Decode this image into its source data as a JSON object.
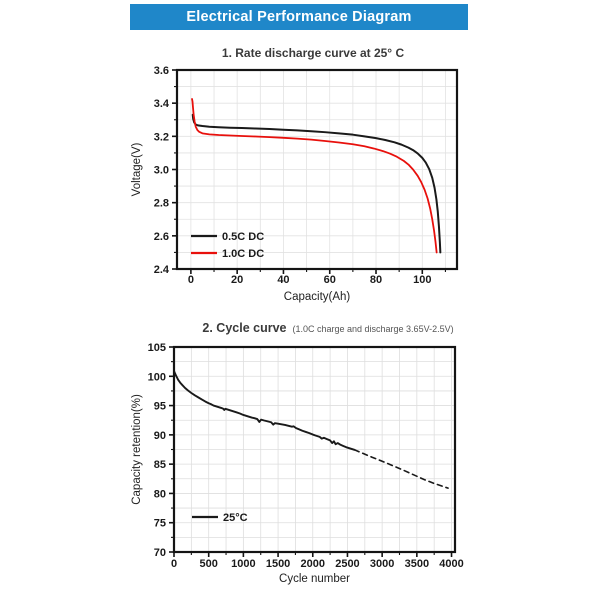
{
  "header": {
    "title": "Electrical Performance Diagram",
    "bg_color": "#1f87c9",
    "text_color": "#ffffff"
  },
  "colors": {
    "frame": "#141414",
    "tick_label": "#1a1a1a",
    "axis_label": "#222222",
    "title": "#3a3a3a",
    "subtitle": "#555555",
    "curve_black": "#1a1a1a",
    "curve_red": "#e8100c"
  },
  "chart_data": [
    {
      "type": "line",
      "title": "1.  Rate discharge curve at 25° C",
      "subtitle": "",
      "xlabel": "Capacity(Ah)",
      "ylabel": "Voltage(V)",
      "xlim": [
        -6,
        115
      ],
      "ylim": [
        2.4,
        3.6
      ],
      "x_ticks": [
        0,
        20,
        40,
        60,
        80,
        100
      ],
      "x_tick_labels": [
        "0",
        "20",
        "40",
        "60",
        "80",
        "100"
      ],
      "x_minor_ticks": [
        10,
        30,
        50,
        70,
        90,
        110
      ],
      "y_ticks": [
        2.4,
        2.6,
        2.8,
        3.0,
        3.2,
        3.4,
        3.6
      ],
      "y_tick_labels": [
        "2.4",
        "2.6",
        "2.8",
        "3.0",
        "3.2",
        "3.4",
        "3.6"
      ],
      "y_minor_ticks": [
        2.5,
        2.7,
        2.9,
        3.1,
        3.3,
        3.5
      ],
      "grid": true,
      "grid_color": "#e2e2e2",
      "legend_position": "lower-left",
      "series": [
        {
          "name": "0.5C DC",
          "color": "#1a1a1a",
          "width": 2,
          "dash": null,
          "in_legend": true,
          "points": [
            [
              0.8,
              3.33
            ],
            [
              1.0,
              3.305
            ],
            [
              1.4,
              3.285
            ],
            [
              2,
              3.272
            ],
            [
              3,
              3.266
            ],
            [
              5,
              3.262
            ],
            [
              8,
              3.258
            ],
            [
              12,
              3.255
            ],
            [
              17,
              3.252
            ],
            [
              22,
              3.25
            ],
            [
              28,
              3.247
            ],
            [
              34,
              3.244
            ],
            [
              40,
              3.24
            ],
            [
              46,
              3.236
            ],
            [
              52,
              3.231
            ],
            [
              58,
              3.225
            ],
            [
              64,
              3.218
            ],
            [
              70,
              3.21
            ],
            [
              75,
              3.2
            ],
            [
              80,
              3.189
            ],
            [
              84,
              3.178
            ],
            [
              88,
              3.164
            ],
            [
              91,
              3.15
            ],
            [
              94,
              3.132
            ],
            [
              96,
              3.117
            ],
            [
              98,
              3.097
            ],
            [
              100,
              3.07
            ],
            [
              101.5,
              3.042
            ],
            [
              103,
              3.002
            ],
            [
              104.3,
              2.95
            ],
            [
              105.3,
              2.89
            ],
            [
              106.1,
              2.82
            ],
            [
              106.7,
              2.745
            ],
            [
              107.2,
              2.655
            ],
            [
              107.6,
              2.56
            ],
            [
              107.8,
              2.5
            ]
          ]
        },
        {
          "name": "1.0C DC",
          "color": "#e8100c",
          "width": 1.8,
          "dash": null,
          "in_legend": true,
          "points": [
            [
              0.5,
              3.425
            ],
            [
              0.7,
              3.41
            ],
            [
              0.9,
              3.375
            ],
            [
              1.2,
              3.33
            ],
            [
              1.6,
              3.29
            ],
            [
              2.1,
              3.258
            ],
            [
              2.8,
              3.238
            ],
            [
              3.6,
              3.227
            ],
            [
              5,
              3.218
            ],
            [
              8,
              3.212
            ],
            [
              12,
              3.208
            ],
            [
              17,
              3.205
            ],
            [
              22,
              3.202
            ],
            [
              28,
              3.199
            ],
            [
              34,
              3.195
            ],
            [
              40,
              3.191
            ],
            [
              46,
              3.186
            ],
            [
              52,
              3.18
            ],
            [
              58,
              3.172
            ],
            [
              64,
              3.163
            ],
            [
              70,
              3.152
            ],
            [
              75,
              3.14
            ],
            [
              79,
              3.127
            ],
            [
              83,
              3.111
            ],
            [
              86,
              3.096
            ],
            [
              89,
              3.077
            ],
            [
              92,
              3.052
            ],
            [
              94,
              3.03
            ],
            [
              96,
              3.0
            ],
            [
              98,
              2.962
            ],
            [
              99.5,
              2.925
            ],
            [
              101,
              2.878
            ],
            [
              102.3,
              2.825
            ],
            [
              103.4,
              2.765
            ],
            [
              104.3,
              2.7
            ],
            [
              105.1,
              2.63
            ],
            [
              105.7,
              2.565
            ],
            [
              106.2,
              2.5
            ]
          ]
        }
      ]
    },
    {
      "type": "line",
      "title": "2.  Cycle curve",
      "subtitle": "(1.0C charge and discharge 3.65V-2.5V)",
      "xlabel": "Cycle number",
      "ylabel": "Capacity retention(%)",
      "xlim": [
        0,
        4050
      ],
      "ylim": [
        70,
        105
      ],
      "x_ticks": [
        0,
        500,
        1000,
        1500,
        2000,
        2500,
        3000,
        3500,
        4000
      ],
      "x_tick_labels": [
        "0",
        "500",
        "1000",
        "1500",
        "2000",
        "2500",
        "3000",
        "3500",
        "4000"
      ],
      "x_minor_ticks": [
        250,
        750,
        1250,
        1750,
        2250,
        2750,
        3250,
        3750
      ],
      "y_ticks": [
        70,
        75,
        80,
        85,
        90,
        95,
        100,
        105
      ],
      "y_tick_labels": [
        "70",
        "75",
        "80",
        "85",
        "90",
        "95",
        "100",
        "105"
      ],
      "y_minor_ticks": [
        72.5,
        77.5,
        82.5,
        87.5,
        92.5,
        97.5,
        102.5
      ],
      "grid": true,
      "grid_color": "#dedede",
      "legend_position": "lower-left",
      "series": [
        {
          "name": "25°C",
          "color": "#1a1a1a",
          "width": 1.9,
          "dash": null,
          "in_legend": true,
          "points": [
            [
              0,
              100.9
            ],
            [
              15,
              100.5
            ],
            [
              30,
              100.1
            ],
            [
              60,
              99.4
            ],
            [
              90,
              98.9
            ],
            [
              120,
              98.5
            ],
            [
              160,
              98.0
            ],
            [
              200,
              97.6
            ],
            [
              250,
              97.15
            ],
            [
              300,
              96.75
            ],
            [
              350,
              96.4
            ],
            [
              400,
              96.05
            ],
            [
              450,
              95.7
            ],
            [
              500,
              95.4
            ],
            [
              540,
              95.2
            ],
            [
              570,
              95.0
            ],
            [
              600,
              94.9
            ],
            [
              640,
              94.75
            ],
            [
              680,
              94.6
            ],
            [
              710,
              94.45
            ],
            [
              725,
              94.25
            ],
            [
              740,
              94.45
            ],
            [
              780,
              94.3
            ],
            [
              820,
              94.15
            ],
            [
              860,
              94.0
            ],
            [
              900,
              93.85
            ],
            [
              950,
              93.65
            ],
            [
              1000,
              93.4
            ],
            [
              1040,
              93.25
            ],
            [
              1080,
              93.1
            ],
            [
              1120,
              92.95
            ],
            [
              1160,
              92.85
            ],
            [
              1200,
              92.7
            ],
            [
              1230,
              92.2
            ],
            [
              1255,
              92.6
            ],
            [
              1300,
              92.45
            ],
            [
              1350,
              92.3
            ],
            [
              1400,
              92.15
            ],
            [
              1430,
              91.75
            ],
            [
              1455,
              92.0
            ],
            [
              1500,
              91.9
            ],
            [
              1550,
              91.8
            ],
            [
              1600,
              91.7
            ],
            [
              1650,
              91.55
            ],
            [
              1700,
              91.4
            ],
            [
              1725,
              91.45
            ],
            [
              1760,
              91.15
            ],
            [
              1800,
              90.95
            ],
            [
              1850,
              90.7
            ],
            [
              1900,
              90.5
            ],
            [
              1950,
              90.3
            ],
            [
              2000,
              90.05
            ],
            [
              2050,
              89.85
            ],
            [
              2100,
              89.65
            ],
            [
              2130,
              89.35
            ],
            [
              2160,
              89.5
            ],
            [
              2200,
              89.3
            ],
            [
              2250,
              89.05
            ],
            [
              2280,
              88.6
            ],
            [
              2305,
              88.9
            ],
            [
              2330,
              88.4
            ],
            [
              2360,
              88.6
            ],
            [
              2400,
              88.3
            ],
            [
              2440,
              88.1
            ],
            [
              2480,
              87.9
            ],
            [
              2520,
              87.75
            ],
            [
              2560,
              87.6
            ],
            [
              2600,
              87.45
            ]
          ]
        },
        {
          "name": "25°C extrapolated",
          "color": "#1a1a1a",
          "width": 1.6,
          "dash": "5,4",
          "in_legend": false,
          "points": [
            [
              2600,
              87.45
            ],
            [
              2700,
              86.95
            ],
            [
              2850,
              86.2
            ],
            [
              3000,
              85.5
            ],
            [
              3150,
              84.75
            ],
            [
              3300,
              84.0
            ],
            [
              3450,
              83.2
            ],
            [
              3600,
              82.4
            ],
            [
              3750,
              81.7
            ],
            [
              3950,
              80.9
            ]
          ]
        }
      ]
    }
  ]
}
